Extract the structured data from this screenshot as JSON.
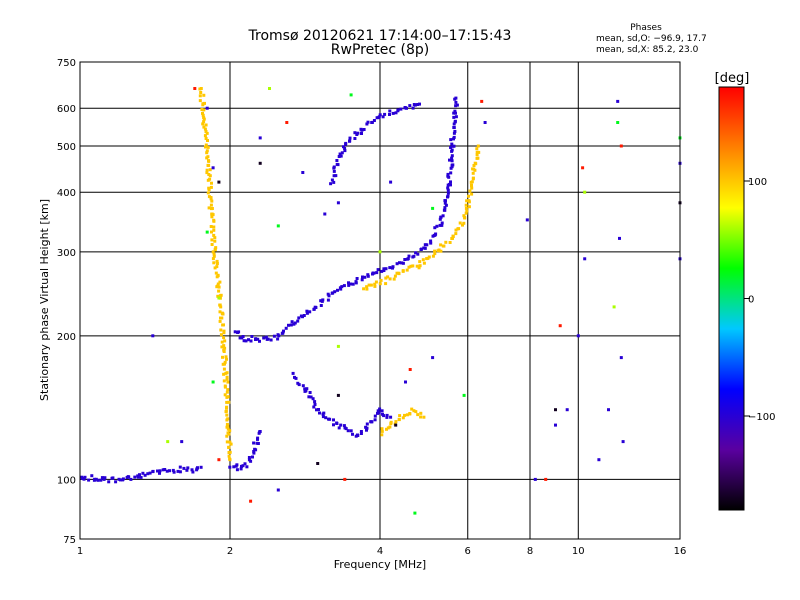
{
  "chart_data": {
    "type": "scatter",
    "title": "Tromsø 20120621 17:14:00–17:15:43",
    "subtitle": "RwPretec (8p)",
    "xlabel": "Frequency [MHz]",
    "ylabel": "Stationary phase Virtual Height [km]",
    "x_scale": "log",
    "y_scale": "log",
    "xlim": [
      1,
      16
    ],
    "ylim": [
      75,
      750
    ],
    "x_ticks": [
      1,
      2,
      4,
      6,
      8,
      10,
      16
    ],
    "x_tick_labels": [
      "1",
      "2",
      "4",
      "6",
      "8",
      "10",
      "16"
    ],
    "y_ticks": [
      75,
      100,
      200,
      300,
      400,
      500,
      600,
      750
    ],
    "y_tick_labels": [
      "75",
      "100",
      "200",
      "300",
      "400",
      "500",
      "600",
      "750"
    ],
    "grid": true,
    "stats": {
      "heading": "Phases",
      "line1": "mean, sd,O: −96.9, 17.7",
      "line2": "mean, sd,X:  85.2, 23.0"
    },
    "colorbar": {
      "label": "[deg]",
      "range": [
        -180,
        180
      ],
      "ticks": [
        100,
        0,
        -100
      ],
      "tick_labels": [
        "100",
        "0",
        "−100"
      ],
      "stops": [
        "#000000",
        "#5a00a0",
        "#0000ff",
        "#00c8ff",
        "#00ff00",
        "#ffff00",
        "#ff8000",
        "#ff0000"
      ]
    },
    "colors": {
      "o_trace": "#0000ff",
      "x_trace": "#e6e600",
      "gridline": "#000000"
    },
    "series": [
      {
        "phase": -100,
        "points": [
          [
            1.0,
            100
          ],
          [
            1.05,
            101
          ],
          [
            1.1,
            100
          ],
          [
            1.2,
            100
          ],
          [
            1.3,
            101
          ],
          [
            1.4,
            103
          ],
          [
            1.5,
            104
          ],
          [
            1.6,
            105
          ],
          [
            1.7,
            104
          ],
          [
            1.75,
            106
          ]
        ]
      },
      {
        "phase": -100,
        "points": [
          [
            2.0,
            106
          ],
          [
            2.1,
            106
          ],
          [
            2.15,
            107
          ],
          [
            2.2,
            111
          ],
          [
            2.25,
            118
          ],
          [
            2.3,
            126
          ]
        ]
      },
      {
        "phase": -100,
        "points": [
          [
            2.05,
            205
          ],
          [
            2.1,
            198
          ],
          [
            2.2,
            197
          ],
          [
            2.4,
            197
          ],
          [
            2.5,
            200
          ],
          [
            2.6,
            208
          ],
          [
            2.8,
            220
          ],
          [
            3.0,
            232
          ],
          [
            3.2,
            245
          ],
          [
            3.5,
            258
          ],
          [
            3.8,
            268
          ],
          [
            4.0,
            275
          ],
          [
            4.3,
            282
          ],
          [
            4.6,
            292
          ],
          [
            4.9,
            305
          ],
          [
            5.1,
            322
          ],
          [
            5.3,
            345
          ],
          [
            5.4,
            375
          ],
          [
            5.5,
            415
          ],
          [
            5.55,
            460
          ],
          [
            5.6,
            520
          ],
          [
            5.65,
            580
          ],
          [
            5.68,
            630
          ]
        ]
      },
      {
        "phase": -100,
        "points": [
          [
            3.2,
            420
          ],
          [
            3.3,
            470
          ],
          [
            3.5,
            520
          ],
          [
            3.8,
            555
          ],
          [
            4.1,
            585
          ],
          [
            4.5,
            600
          ],
          [
            4.8,
            612
          ]
        ]
      },
      {
        "phase": -100,
        "points": [
          [
            2.7,
            165
          ],
          [
            2.9,
            150
          ],
          [
            3.0,
            140
          ],
          [
            3.2,
            132
          ],
          [
            3.4,
            128
          ],
          [
            3.6,
            124
          ],
          [
            3.8,
            130
          ],
          [
            4.0,
            140
          ],
          [
            4.2,
            135
          ]
        ]
      },
      {
        "phase": 100,
        "points": [
          [
            3.7,
            252
          ],
          [
            4.0,
            258
          ],
          [
            4.4,
            270
          ],
          [
            4.8,
            282
          ],
          [
            5.2,
            300
          ],
          [
            5.6,
            320
          ],
          [
            5.9,
            350
          ],
          [
            6.1,
            400
          ],
          [
            6.2,
            450
          ],
          [
            6.3,
            500
          ]
        ]
      },
      {
        "phase": 100,
        "points": [
          [
            4.0,
            125
          ],
          [
            4.4,
            135
          ],
          [
            4.7,
            140
          ],
          [
            4.9,
            135
          ]
        ]
      },
      {
        "phase": 100,
        "points": [
          [
            1.75,
            660
          ],
          [
            1.8,
            500
          ],
          [
            1.85,
            320
          ],
          [
            1.9,
            250
          ],
          [
            1.95,
            180
          ],
          [
            2.0,
            110
          ]
        ]
      }
    ],
    "scattered_points": [
      {
        "phase": -100,
        "points": [
          [
            1.4,
            200
          ],
          [
            1.6,
            120
          ],
          [
            1.8,
            600
          ],
          [
            1.85,
            450
          ],
          [
            2.3,
            520
          ],
          [
            2.5,
            95
          ],
          [
            2.8,
            440
          ],
          [
            3.1,
            360
          ],
          [
            3.3,
            380
          ],
          [
            4.2,
            420
          ],
          [
            4.5,
            160
          ],
          [
            5.1,
            180
          ],
          [
            6.5,
            560
          ],
          [
            7.9,
            350
          ],
          [
            8.2,
            100
          ],
          [
            9.0,
            130
          ],
          [
            9.5,
            140
          ],
          [
            10.0,
            200
          ],
          [
            10.3,
            290
          ],
          [
            11.0,
            110
          ],
          [
            11.5,
            140
          ],
          [
            12.0,
            620
          ],
          [
            12.1,
            320
          ],
          [
            12.2,
            180
          ],
          [
            12.3,
            120
          ],
          [
            16.0,
            460
          ],
          [
            16.0,
            290
          ]
        ]
      },
      {
        "phase": 20,
        "points": [
          [
            1.8,
            330
          ],
          [
            1.85,
            160
          ],
          [
            2.5,
            340
          ],
          [
            3.5,
            640
          ],
          [
            4.7,
            85
          ],
          [
            5.1,
            370
          ],
          [
            5.9,
            150
          ],
          [
            12.0,
            560
          ],
          [
            16.0,
            520
          ]
        ]
      },
      {
        "phase": 60,
        "points": [
          [
            1.5,
            120
          ],
          [
            1.9,
            240
          ],
          [
            2.4,
            660
          ],
          [
            3.3,
            190
          ],
          [
            4.0,
            300
          ],
          [
            10.3,
            400
          ],
          [
            11.8,
            230
          ]
        ]
      },
      {
        "phase": 170,
        "points": [
          [
            1.7,
            660
          ],
          [
            1.9,
            110
          ],
          [
            2.2,
            90
          ],
          [
            2.6,
            560
          ],
          [
            3.4,
            100
          ],
          [
            4.6,
            170
          ],
          [
            6.4,
            620
          ],
          [
            8.6,
            100
          ],
          [
            9.2,
            210
          ],
          [
            10.2,
            450
          ],
          [
            12.2,
            500
          ]
        ]
      },
      {
        "phase": -170,
        "points": [
          [
            1.9,
            420
          ],
          [
            2.3,
            460
          ],
          [
            3.0,
            108
          ],
          [
            3.3,
            150
          ],
          [
            4.3,
            130
          ],
          [
            9.0,
            140
          ],
          [
            16.0,
            380
          ]
        ]
      }
    ]
  }
}
